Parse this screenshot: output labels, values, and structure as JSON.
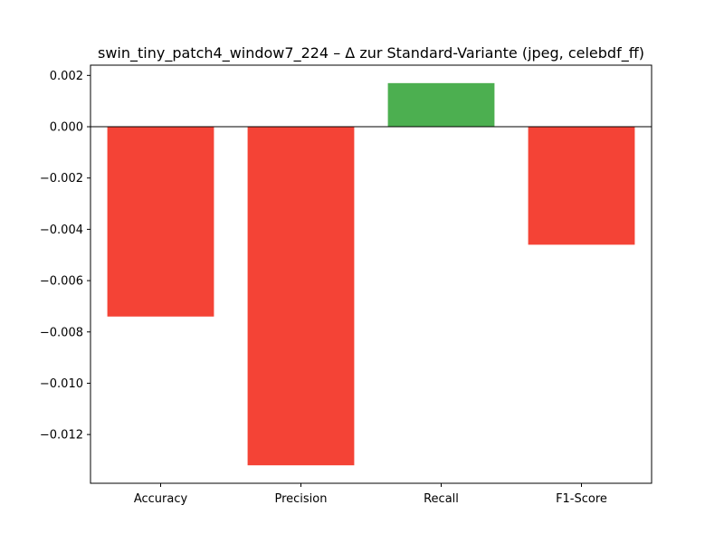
{
  "chart_data": {
    "type": "bar",
    "title": "swin_tiny_patch4_window7_224 – Δ zur Standard-Variante (jpeg, celebdf_ff)",
    "xlabel": "",
    "ylabel": "",
    "categories": [
      "Accuracy",
      "Precision",
      "Recall",
      "F1-Score"
    ],
    "values": [
      -0.0074,
      -0.0132,
      0.0017,
      -0.0046
    ],
    "ylim": [
      -0.0139,
      0.0024
    ],
    "yticks": [
      0.002,
      0.0,
      -0.002,
      -0.004,
      -0.006,
      -0.008,
      -0.01,
      -0.012
    ],
    "ytick_labels": [
      "0.002",
      "0.000",
      "−0.002",
      "−0.004",
      "−0.006",
      "−0.008",
      "−0.010",
      "−0.012"
    ],
    "colors": {
      "positive": "#4caf50",
      "negative": "#f44336",
      "zero_line": "#000000"
    },
    "grid": false,
    "legend": "none"
  }
}
